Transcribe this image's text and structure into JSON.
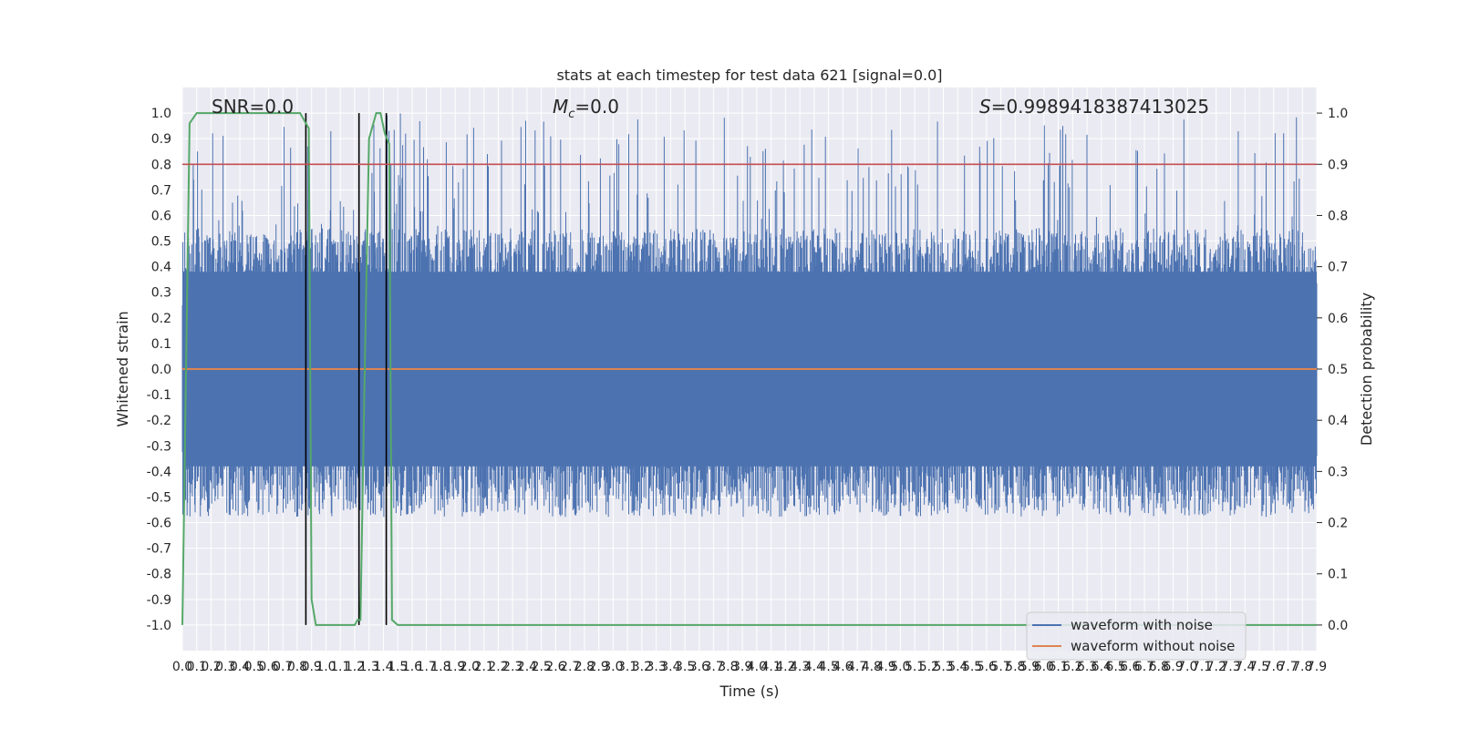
{
  "chart_data": {
    "type": "line",
    "title": "stats at each timestep for test data 621 [signal=0.0]",
    "xlabel": "Time (s)",
    "ylabel_left": "Whitened strain",
    "ylabel_right": "Detection probability",
    "xlim": [
      0.0,
      7.9
    ],
    "ylim_left": [
      -1.1,
      1.1
    ],
    "ylim_right": [
      -0.05,
      1.05
    ],
    "x_ticks": [
      0.0,
      0.1,
      0.2,
      0.3,
      0.4,
      0.5,
      0.6,
      0.7,
      0.8,
      0.9,
      1.0,
      1.1,
      1.2,
      1.3,
      1.4,
      1.5,
      1.6,
      1.7,
      1.8,
      1.9,
      2.0,
      2.1,
      2.2,
      2.3,
      2.4,
      2.5,
      2.6,
      2.7,
      2.8,
      2.9,
      3.0,
      3.1,
      3.2,
      3.3,
      3.4,
      3.5,
      3.6,
      3.7,
      3.8,
      3.9,
      4.0,
      4.1,
      4.2,
      4.3,
      4.4,
      4.5,
      4.6,
      4.7,
      4.8,
      4.9,
      5.0,
      5.1,
      5.2,
      5.3,
      5.4,
      5.5,
      5.6,
      5.7,
      5.8,
      5.9,
      6.0,
      6.1,
      6.2,
      6.3,
      6.4,
      6.5,
      6.6,
      6.7,
      6.8,
      6.9,
      7.0,
      7.1,
      7.2,
      7.3,
      7.4,
      7.5,
      7.6,
      7.7,
      7.8,
      7.9
    ],
    "y_ticks_left": [
      -1.0,
      -0.9,
      -0.8,
      -0.7,
      -0.6,
      -0.5,
      -0.4,
      -0.3,
      -0.2,
      -0.1,
      0.0,
      0.1,
      0.2,
      0.3,
      0.4,
      0.5,
      0.6,
      0.7,
      0.8,
      0.9,
      1.0
    ],
    "y_ticks_right": [
      0.0,
      0.1,
      0.2,
      0.3,
      0.4,
      0.5,
      0.6,
      0.7,
      0.8,
      0.9,
      1.0
    ],
    "grid": true,
    "legend_position": "lower-right",
    "annotations": {
      "snr": "SNR=0.0",
      "mc_symbol": "M",
      "mc_sub": "c",
      "mc_value": "=0.0",
      "s_symbol": "S",
      "s_value": "=0.9989418387413025"
    },
    "series": [
      {
        "name": "waveform with noise",
        "color": "#4c72b0",
        "axis": "left",
        "kind": "noise",
        "envelope": 0.55,
        "peak": 1.0
      },
      {
        "name": "waveform without noise",
        "color": "#dd8452",
        "axis": "left",
        "kind": "flat",
        "value": 0.0
      },
      {
        "color": "#55a868",
        "axis": "right",
        "x": [
          0.0,
          0.05,
          0.1,
          0.15,
          0.2,
          0.8,
          0.82,
          0.86,
          0.88,
          0.9,
          0.93,
          0.96,
          1.2,
          1.22,
          1.24,
          1.27,
          1.3,
          1.35,
          1.38,
          1.41,
          1.44,
          1.46,
          1.5,
          1.55,
          7.9
        ],
        "values": [
          0.0,
          0.98,
          1.0,
          1.0,
          1.0,
          1.0,
          1.0,
          0.98,
          0.97,
          0.05,
          0.0,
          0.0,
          0.0,
          0.01,
          0.01,
          0.5,
          0.95,
          1.0,
          1.0,
          0.96,
          0.94,
          0.01,
          0.0,
          0.0,
          0.0
        ]
      },
      {
        "color": "#c44e52",
        "axis": "right",
        "kind": "threshold",
        "value": 0.9
      }
    ],
    "vertical_markers": [
      0.86,
      1.23,
      1.42
    ]
  }
}
